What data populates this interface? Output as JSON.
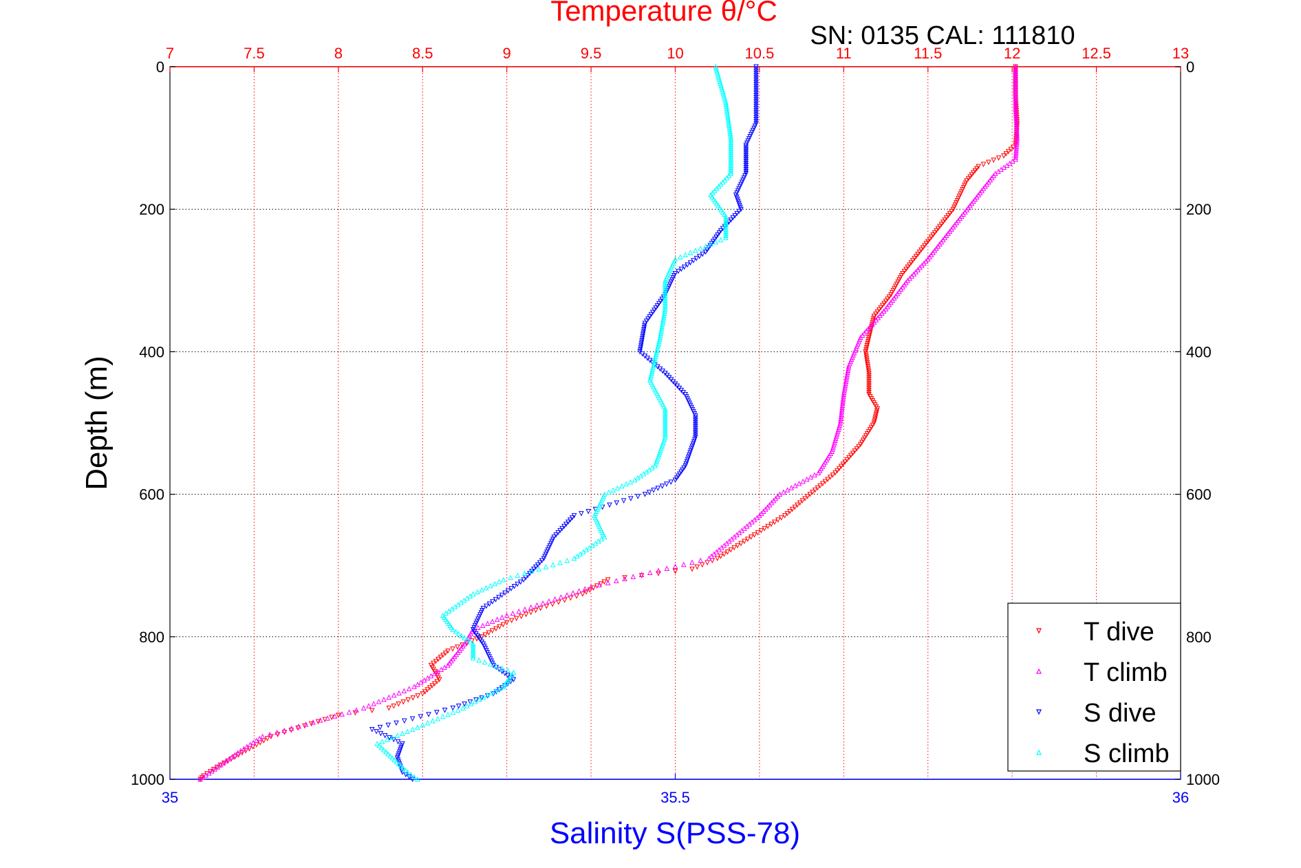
{
  "chart_data": {
    "type": "scatter",
    "title": "Temperature θ/°C",
    "subtitle": "SN: 0135  CAL: 111810",
    "ylabel": "Depth (m)",
    "xlabel": "Salinity S(PSS-78)",
    "top_axis": {
      "label": "Temperature θ/°C",
      "range": [
        7,
        13
      ],
      "ticks": [
        "7",
        "7.5",
        "8",
        "8.5",
        "9",
        "9.5",
        "10",
        "10.5",
        "11",
        "11.5",
        "12",
        "12.5",
        "13"
      ]
    },
    "bottom_axis": {
      "label": "Salinity S(PSS-78)",
      "range": [
        35,
        36
      ],
      "ticks": [
        "35",
        "35.5",
        "36"
      ]
    },
    "y_axis": {
      "label": "Depth (m)",
      "range": [
        0,
        1000
      ],
      "reversed": true,
      "ticks": [
        "0",
        "200",
        "400",
        "600",
        "800",
        "1000"
      ]
    },
    "grid": true,
    "legend_position": "bottom-right",
    "colors": {
      "T dive": "#ff0000",
      "T climb": "#ff00ff",
      "S dive": "#0000ff",
      "S climb": "#00ffff",
      "top_axis": "#ff0000",
      "bottom_axis": "#0000ff"
    },
    "series": [
      {
        "name": "T dive",
        "axis": "temperature",
        "color": "#ff0000",
        "points": [
          [
            0,
            12.02
          ],
          [
            40,
            12.02
          ],
          [
            80,
            12.03
          ],
          [
            110,
            12.02
          ],
          [
            125,
            11.95
          ],
          [
            140,
            11.8
          ],
          [
            160,
            11.73
          ],
          [
            200,
            11.65
          ],
          [
            230,
            11.55
          ],
          [
            260,
            11.45
          ],
          [
            290,
            11.35
          ],
          [
            320,
            11.28
          ],
          [
            350,
            11.18
          ],
          [
            380,
            11.15
          ],
          [
            400,
            11.13
          ],
          [
            430,
            11.15
          ],
          [
            460,
            11.15
          ],
          [
            480,
            11.2
          ],
          [
            500,
            11.18
          ],
          [
            530,
            11.1
          ],
          [
            570,
            10.95
          ],
          [
            600,
            10.8
          ],
          [
            630,
            10.65
          ],
          [
            660,
            10.45
          ],
          [
            690,
            10.25
          ],
          [
            705,
            10.1
          ],
          [
            720,
            9.6
          ],
          [
            740,
            9.45
          ],
          [
            760,
            9.2
          ],
          [
            780,
            9
          ],
          [
            800,
            8.85
          ],
          [
            820,
            8.65
          ],
          [
            840,
            8.55
          ],
          [
            860,
            8.6
          ],
          [
            880,
            8.5
          ],
          [
            900,
            8.3
          ],
          [
            910,
            8.0
          ],
          [
            925,
            7.8
          ],
          [
            940,
            7.6
          ],
          [
            960,
            7.45
          ],
          [
            980,
            7.3
          ],
          [
            995,
            7.2
          ],
          [
            1000,
            7.18
          ]
        ]
      },
      {
        "name": "T climb",
        "axis": "temperature",
        "color": "#ff00ff",
        "points": [
          [
            0,
            12.02
          ],
          [
            60,
            12.02
          ],
          [
            100,
            12.03
          ],
          [
            130,
            12.02
          ],
          [
            150,
            11.9
          ],
          [
            180,
            11.8
          ],
          [
            210,
            11.7
          ],
          [
            240,
            11.6
          ],
          [
            270,
            11.5
          ],
          [
            300,
            11.38
          ],
          [
            340,
            11.25
          ],
          [
            380,
            11.1
          ],
          [
            420,
            11.03
          ],
          [
            460,
            11.0
          ],
          [
            500,
            10.98
          ],
          [
            540,
            10.93
          ],
          [
            570,
            10.85
          ],
          [
            600,
            10.62
          ],
          [
            630,
            10.5
          ],
          [
            660,
            10.35
          ],
          [
            690,
            10.2
          ],
          [
            710,
            9.85
          ],
          [
            730,
            9.5
          ],
          [
            750,
            9.25
          ],
          [
            770,
            9.0
          ],
          [
            790,
            8.8
          ],
          [
            810,
            8.75
          ],
          [
            840,
            8.65
          ],
          [
            870,
            8.45
          ],
          [
            900,
            8.15
          ],
          [
            920,
            7.85
          ],
          [
            940,
            7.55
          ],
          [
            960,
            7.42
          ],
          [
            980,
            7.3
          ],
          [
            1000,
            7.18
          ]
        ]
      },
      {
        "name": "S dive",
        "axis": "salinity",
        "color": "#0000ff",
        "points": [
          [
            0,
            35.58
          ],
          [
            40,
            35.58
          ],
          [
            80,
            35.58
          ],
          [
            110,
            35.57
          ],
          [
            130,
            35.57
          ],
          [
            150,
            35.57
          ],
          [
            180,
            35.56
          ],
          [
            200,
            35.565
          ],
          [
            230,
            35.545
          ],
          [
            260,
            35.53
          ],
          [
            290,
            35.5
          ],
          [
            320,
            35.49
          ],
          [
            360,
            35.47
          ],
          [
            400,
            35.465
          ],
          [
            430,
            35.49
          ],
          [
            460,
            35.51
          ],
          [
            490,
            35.52
          ],
          [
            520,
            35.52
          ],
          [
            560,
            35.51
          ],
          [
            580,
            35.5
          ],
          [
            600,
            35.47
          ],
          [
            630,
            35.4
          ],
          [
            660,
            35.38
          ],
          [
            690,
            35.37
          ],
          [
            720,
            35.35
          ],
          [
            760,
            35.31
          ],
          [
            790,
            35.3
          ],
          [
            810,
            35.31
          ],
          [
            840,
            35.32
          ],
          [
            860,
            35.34
          ],
          [
            880,
            35.32
          ],
          [
            900,
            35.28
          ],
          [
            930,
            35.2
          ],
          [
            950,
            35.23
          ],
          [
            970,
            35.225
          ],
          [
            990,
            35.23
          ],
          [
            1000,
            35.24
          ]
        ]
      },
      {
        "name": "S climb",
        "axis": "salinity",
        "color": "#00ffff",
        "points": [
          [
            0,
            35.54
          ],
          [
            50,
            35.55
          ],
          [
            100,
            35.555
          ],
          [
            150,
            35.555
          ],
          [
            180,
            35.535
          ],
          [
            210,
            35.55
          ],
          [
            240,
            35.55
          ],
          [
            270,
            35.5
          ],
          [
            300,
            35.49
          ],
          [
            340,
            35.49
          ],
          [
            380,
            35.485
          ],
          [
            410,
            35.48
          ],
          [
            440,
            35.475
          ],
          [
            480,
            35.49
          ],
          [
            520,
            35.49
          ],
          [
            560,
            35.48
          ],
          [
            580,
            35.46
          ],
          [
            600,
            35.43
          ],
          [
            630,
            35.42
          ],
          [
            660,
            35.43
          ],
          [
            690,
            35.4
          ],
          [
            720,
            35.33
          ],
          [
            740,
            35.3
          ],
          [
            770,
            35.27
          ],
          [
            790,
            35.28
          ],
          [
            810,
            35.3
          ],
          [
            830,
            35.3
          ],
          [
            850,
            35.34
          ],
          [
            870,
            35.33
          ],
          [
            900,
            35.29
          ],
          [
            930,
            35.24
          ],
          [
            950,
            35.205
          ],
          [
            970,
            35.22
          ],
          [
            990,
            35.235
          ],
          [
            1000,
            35.245
          ]
        ]
      }
    ]
  }
}
